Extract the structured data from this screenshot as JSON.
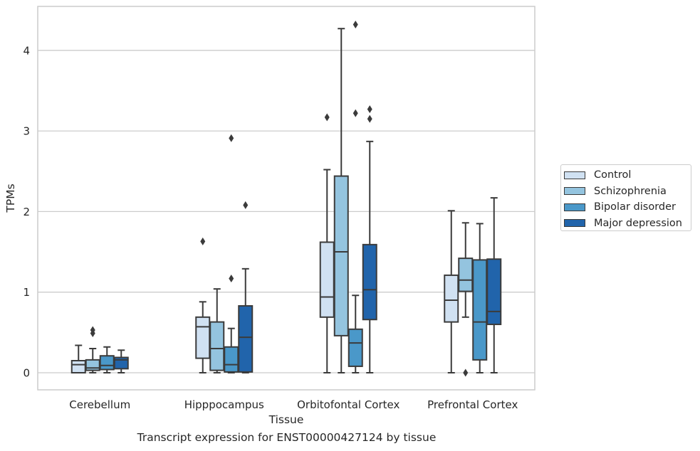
{
  "chart_data": {
    "type": "box",
    "title": "Transcript expression for ENST00000427124 by tissue",
    "xlabel": "Tissue",
    "ylabel": "TPMs",
    "ylim": [
      -0.2,
      4.55
    ],
    "yticks": [
      0,
      1,
      2,
      3,
      4
    ],
    "grid": "horizontal",
    "legend_position": "right",
    "categories": [
      "Cerebellum",
      "Hipppocampus",
      "Orbitofontal Cortex",
      "Prefrontal Cortex"
    ],
    "series": [
      {
        "name": "Control",
        "color": "#d0e1f2",
        "boxes": [
          {
            "min": 0,
            "q1": 0,
            "median": 0.1,
            "q3": 0.15,
            "max": 0.34,
            "outliers": []
          },
          {
            "min": 0,
            "q1": 0.18,
            "median": 0.57,
            "q3": 0.69,
            "max": 0.88,
            "outliers": [
              1.63
            ]
          },
          {
            "min": 0,
            "q1": 0.69,
            "median": 0.94,
            "q3": 1.62,
            "max": 2.52,
            "outliers": [
              3.17
            ]
          },
          {
            "min": 0,
            "q1": 0.63,
            "median": 0.9,
            "q3": 1.21,
            "max": 2.01,
            "outliers": []
          }
        ]
      },
      {
        "name": "Schizophrenia",
        "color": "#94c4df",
        "boxes": [
          {
            "min": 0,
            "q1": 0.03,
            "median": 0.06,
            "q3": 0.16,
            "max": 0.3,
            "outliers": [
              0.49,
              0.53
            ]
          },
          {
            "min": 0,
            "q1": 0.03,
            "median": 0.3,
            "q3": 0.63,
            "max": 1.04,
            "outliers": []
          },
          {
            "min": 0,
            "q1": 0.46,
            "median": 1.5,
            "q3": 2.44,
            "max": 4.27,
            "outliers": []
          },
          {
            "min": 0.69,
            "q1": 1.01,
            "median": 1.15,
            "q3": 1.42,
            "max": 1.86,
            "outliers": [
              0
            ]
          }
        ]
      },
      {
        "name": "Bipolar disorder",
        "color": "#4a98c9",
        "boxes": [
          {
            "min": 0,
            "q1": 0.04,
            "median": 0.09,
            "q3": 0.21,
            "max": 0.32,
            "outliers": []
          },
          {
            "min": 0,
            "q1": 0.01,
            "median": 0.1,
            "q3": 0.32,
            "max": 0.55,
            "outliers": [
              1.17,
              2.91
            ]
          },
          {
            "min": 0,
            "q1": 0.08,
            "median": 0.37,
            "q3": 0.54,
            "max": 0.96,
            "outliers": [
              3.22,
              4.32
            ]
          },
          {
            "min": 0,
            "q1": 0.16,
            "median": 0.63,
            "q3": 1.4,
            "max": 1.85,
            "outliers": []
          }
        ]
      },
      {
        "name": "Major depression",
        "color": "#2164ab",
        "boxes": [
          {
            "min": 0,
            "q1": 0.05,
            "median": 0.16,
            "q3": 0.19,
            "max": 0.28,
            "outliers": []
          },
          {
            "min": 0,
            "q1": 0.01,
            "median": 0.44,
            "q3": 0.83,
            "max": 1.29,
            "outliers": [
              2.08
            ]
          },
          {
            "min": 0,
            "q1": 0.66,
            "median": 1.03,
            "q3": 1.59,
            "max": 2.87,
            "outliers": [
              3.15,
              3.27
            ]
          },
          {
            "min": 0,
            "q1": 0.6,
            "median": 0.76,
            "q3": 1.41,
            "max": 2.17,
            "outliers": []
          }
        ]
      }
    ]
  }
}
